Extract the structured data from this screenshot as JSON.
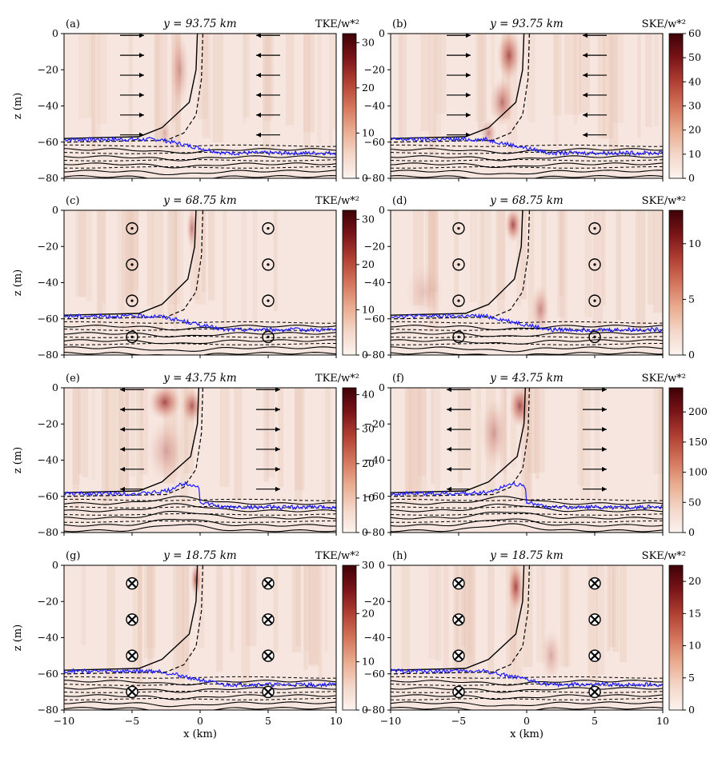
{
  "figure": {
    "x_label": "x (km)",
    "y_label": "z (m)",
    "colormap": [
      "#fbf3ef",
      "#f4d6c8",
      "#e9ab8e",
      "#d3735a",
      "#b13f33",
      "#7a1418",
      "#3d0207"
    ],
    "mld_color": "#1a1aff"
  },
  "chart_data": [
    {
      "panel": "a",
      "label": "(a)",
      "type": "heatmap",
      "title": "y = 93.75 km",
      "cbar_label": "TKE/w*²",
      "x_range": [
        -10,
        10
      ],
      "y_range": [
        -80,
        0
      ],
      "x_ticks": [
        -10,
        -5,
        0,
        5,
        10
      ],
      "y_ticks": [
        0,
        -20,
        -40,
        -60,
        -80
      ],
      "cbar_range": [
        0,
        32
      ],
      "cbar_ticks": [
        0,
        10,
        20,
        30
      ],
      "arrows": "right-left",
      "blobs": [
        {
          "x": -1.5,
          "z": -20,
          "w": 0.7,
          "h": 22,
          "v": 0.35
        },
        {
          "x": -2.6,
          "z": -55,
          "w": 0.5,
          "h": 8,
          "v": 0.3
        }
      ]
    },
    {
      "panel": "b",
      "label": "(b)",
      "type": "heatmap",
      "title": "y = 93.75 km",
      "cbar_label": "SKE/w*²",
      "x_range": [
        -10,
        10
      ],
      "y_range": [
        -80,
        0
      ],
      "x_ticks": [
        -10,
        -5,
        0,
        5,
        10
      ],
      "y_ticks": [
        0,
        -20,
        -40,
        -60,
        -80
      ],
      "cbar_range": [
        0,
        60
      ],
      "cbar_ticks": [
        0,
        10,
        20,
        30,
        40,
        50,
        60
      ],
      "arrows": "right-left",
      "blobs": [
        {
          "x": -1.3,
          "z": -12,
          "w": 0.9,
          "h": 14,
          "v": 0.7
        },
        {
          "x": -1.8,
          "z": -38,
          "w": 0.9,
          "h": 14,
          "v": 0.55
        },
        {
          "x": -2.8,
          "z": -55,
          "w": 0.6,
          "h": 8,
          "v": 0.45
        }
      ]
    },
    {
      "panel": "c",
      "label": "(c)",
      "type": "heatmap",
      "title": "y = 68.75 km",
      "cbar_label": "TKE/w*²",
      "x_range": [
        -10,
        10
      ],
      "y_range": [
        -80,
        0
      ],
      "x_ticks": [
        -10,
        -5,
        0,
        5,
        10
      ],
      "y_ticks": [
        0,
        -20,
        -40,
        -60,
        -80
      ],
      "cbar_range": [
        0,
        32
      ],
      "cbar_ticks": [
        0,
        10,
        20,
        30
      ],
      "arrows": "out",
      "blobs": [
        {
          "x": -0.6,
          "z": -10,
          "w": 0.4,
          "h": 12,
          "v": 0.5
        }
      ]
    },
    {
      "panel": "d",
      "label": "(d)",
      "type": "heatmap",
      "title": "y = 68.75 km",
      "cbar_label": "SKE/w*²",
      "x_range": [
        -10,
        10
      ],
      "y_range": [
        -80,
        0
      ],
      "x_ticks": [
        -10,
        -5,
        0,
        5,
        10
      ],
      "y_ticks": [
        0,
        -20,
        -40,
        -60,
        -80
      ],
      "cbar_range": [
        0,
        13
      ],
      "cbar_ticks": [
        0,
        5,
        10
      ],
      "arrows": "out",
      "blobs": [
        {
          "x": -1.0,
          "z": -8,
          "w": 0.6,
          "h": 10,
          "v": 0.75
        },
        {
          "x": 1.0,
          "z": -55,
          "w": 0.7,
          "h": 14,
          "v": 0.45
        },
        {
          "x": -7.5,
          "z": -45,
          "w": 1.5,
          "h": 15,
          "v": 0.15
        }
      ]
    },
    {
      "panel": "e",
      "label": "(e)",
      "type": "heatmap",
      "title": "y = 43.75 km",
      "cbar_label": "TKE/w*²",
      "x_range": [
        -10,
        10
      ],
      "y_range": [
        -80,
        0
      ],
      "x_ticks": [
        -10,
        -5,
        0,
        5,
        10
      ],
      "y_ticks": [
        0,
        -20,
        -40,
        -60,
        -80
      ],
      "cbar_range": [
        0,
        42
      ],
      "cbar_ticks": [
        0,
        10,
        20,
        30,
        40
      ],
      "arrows": "left-right",
      "blobs": [
        {
          "x": -2.6,
          "z": -8,
          "w": 1.2,
          "h": 10,
          "v": 0.75
        },
        {
          "x": -0.6,
          "z": -10,
          "w": 0.8,
          "h": 10,
          "v": 0.65
        },
        {
          "x": -2.5,
          "z": -35,
          "w": 1.4,
          "h": 18,
          "v": 0.3
        }
      ]
    },
    {
      "panel": "f",
      "label": "(f)",
      "type": "heatmap",
      "title": "y = 43.75 km",
      "cbar_label": "SKE/w*²",
      "x_range": [
        -10,
        10
      ],
      "y_range": [
        -80,
        0
      ],
      "x_ticks": [
        -10,
        -5,
        0,
        5,
        10
      ],
      "y_ticks": [
        0,
        -20,
        -40,
        -60,
        -80
      ],
      "cbar_range": [
        0,
        240
      ],
      "cbar_ticks": [
        0,
        50,
        100,
        150,
        200
      ],
      "arrows": "left-right",
      "blobs": [
        {
          "x": -0.5,
          "z": -10,
          "w": 0.8,
          "h": 12,
          "v": 0.75
        },
        {
          "x": -2.4,
          "z": -25,
          "w": 1.0,
          "h": 20,
          "v": 0.35
        }
      ]
    },
    {
      "panel": "g",
      "label": "(g)",
      "type": "heatmap",
      "title": "y = 18.75 km",
      "cbar_label": "TKE/w*²",
      "x_range": [
        -10,
        10
      ],
      "y_range": [
        -80,
        0
      ],
      "x_ticks": [
        -10,
        -5,
        0,
        5,
        10
      ],
      "y_ticks": [
        0,
        -20,
        -40,
        -60,
        -80
      ],
      "cbar_range": [
        0,
        30
      ],
      "cbar_ticks": [
        0,
        10,
        20,
        30
      ],
      "arrows": "in",
      "blobs": [
        {
          "x": -0.3,
          "z": -8,
          "w": 0.4,
          "h": 10,
          "v": 0.7
        }
      ]
    },
    {
      "panel": "h",
      "label": "(h)",
      "type": "heatmap",
      "title": "y = 18.75 km",
      "cbar_label": "SKE/w*²",
      "x_range": [
        -10,
        10
      ],
      "y_range": [
        -80,
        0
      ],
      "x_ticks": [
        -10,
        -5,
        0,
        5,
        10
      ],
      "y_ticks": [
        0,
        -20,
        -40,
        -60,
        -80
      ],
      "cbar_range": [
        0,
        22.5
      ],
      "cbar_ticks": [
        0,
        5,
        10,
        15,
        20
      ],
      "arrows": "in",
      "blobs": [
        {
          "x": -0.8,
          "z": -12,
          "w": 0.6,
          "h": 14,
          "v": 0.75
        },
        {
          "x": 1.8,
          "z": -50,
          "w": 0.8,
          "h": 15,
          "v": 0.3
        }
      ]
    }
  ]
}
